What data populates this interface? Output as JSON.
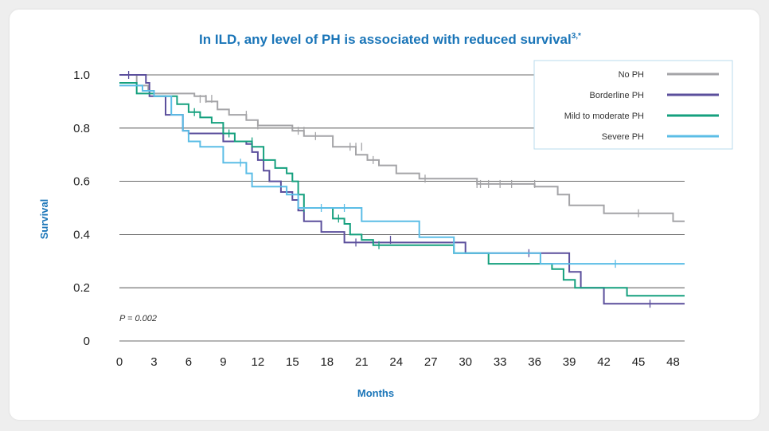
{
  "chart_data": {
    "type": "line",
    "step": true,
    "title": "In ILD, any level of PH is associated with reduced survival",
    "title_superscript": "3,*",
    "xlabel": "Months",
    "ylabel": "Survival",
    "xlim": [
      0,
      49
    ],
    "ylim": [
      0,
      1.0
    ],
    "xticks": [
      0,
      3,
      6,
      9,
      12,
      15,
      18,
      21,
      24,
      27,
      30,
      33,
      36,
      39,
      42,
      45,
      48
    ],
    "yticks": [
      {
        "value": 0,
        "label": "0"
      },
      {
        "value": 0.2,
        "label": "0.2"
      },
      {
        "value": 0.4,
        "label": "0.4"
      },
      {
        "value": 0.6,
        "label": "0.6"
      },
      {
        "value": 0.8,
        "label": "0.8"
      },
      {
        "value": 1.0,
        "label": "1.0"
      }
    ],
    "grid": true,
    "annotation": "P = 0.002",
    "legend_position": "top-right",
    "series": [
      {
        "name": "No PH",
        "color": "#a4a4a7",
        "points": [
          [
            0,
            1.0
          ],
          [
            1.5,
            0.96
          ],
          [
            2.5,
            0.94
          ],
          [
            3,
            0.93
          ],
          [
            6.5,
            0.92
          ],
          [
            7.5,
            0.9
          ],
          [
            8.5,
            0.87
          ],
          [
            9.5,
            0.85
          ],
          [
            11,
            0.83
          ],
          [
            12,
            0.81
          ],
          [
            15,
            0.79
          ],
          [
            16,
            0.77
          ],
          [
            18.5,
            0.73
          ],
          [
            20.5,
            0.7
          ],
          [
            21.5,
            0.68
          ],
          [
            22.5,
            0.66
          ],
          [
            24,
            0.63
          ],
          [
            26,
            0.61
          ],
          [
            31,
            0.59
          ],
          [
            36,
            0.58
          ],
          [
            38,
            0.55
          ],
          [
            39,
            0.51
          ],
          [
            42,
            0.48
          ],
          [
            48,
            0.45
          ],
          [
            49,
            0.45
          ]
        ],
        "censored": [
          [
            1.5,
            0.96
          ],
          [
            7,
            0.91
          ],
          [
            7.5,
            0.91
          ],
          [
            8,
            0.91
          ],
          [
            11,
            0.85
          ],
          [
            12,
            0.81
          ],
          [
            15.5,
            0.79
          ],
          [
            16,
            0.79
          ],
          [
            17,
            0.77
          ],
          [
            20,
            0.73
          ],
          [
            20.5,
            0.73
          ],
          [
            21,
            0.73
          ],
          [
            22,
            0.68
          ],
          [
            26.5,
            0.61
          ],
          [
            31,
            0.59
          ],
          [
            31.3,
            0.59
          ],
          [
            32,
            0.59
          ],
          [
            33,
            0.59
          ],
          [
            34,
            0.59
          ],
          [
            36,
            0.59
          ],
          [
            45,
            0.48
          ]
        ]
      },
      {
        "name": "Borderline PH",
        "color": "#5b4f9c",
        "points": [
          [
            0,
            1.0
          ],
          [
            2.3,
            0.97
          ],
          [
            2.6,
            0.92
          ],
          [
            4,
            0.85
          ],
          [
            5.5,
            0.79
          ],
          [
            6,
            0.78
          ],
          [
            8.5,
            0.78
          ],
          [
            9,
            0.75
          ],
          [
            11,
            0.74
          ],
          [
            11.5,
            0.71
          ],
          [
            12,
            0.68
          ],
          [
            12.5,
            0.64
          ],
          [
            13,
            0.6
          ],
          [
            14,
            0.56
          ],
          [
            15,
            0.53
          ],
          [
            15.5,
            0.49
          ],
          [
            16,
            0.45
          ],
          [
            17.5,
            0.41
          ],
          [
            19.5,
            0.37
          ],
          [
            20.5,
            0.37
          ],
          [
            30,
            0.33
          ],
          [
            39,
            0.26
          ],
          [
            40,
            0.2
          ],
          [
            42,
            0.14
          ],
          [
            49,
            0.14
          ]
        ],
        "censored": [
          [
            0.8,
            1.0
          ],
          [
            12.5,
            0.7
          ],
          [
            20.5,
            0.37
          ],
          [
            23.5,
            0.38
          ],
          [
            35.5,
            0.33
          ],
          [
            46,
            0.14
          ]
        ]
      },
      {
        "name": "Mild to moderate PH",
        "color": "#15a07e",
        "points": [
          [
            0,
            0.97
          ],
          [
            1.5,
            0.93
          ],
          [
            3,
            0.92
          ],
          [
            5,
            0.89
          ],
          [
            6,
            0.86
          ],
          [
            7,
            0.84
          ],
          [
            8,
            0.82
          ],
          [
            9,
            0.78
          ],
          [
            10,
            0.75
          ],
          [
            11.5,
            0.73
          ],
          [
            12.5,
            0.68
          ],
          [
            13.5,
            0.65
          ],
          [
            14.5,
            0.63
          ],
          [
            15,
            0.6
          ],
          [
            15.5,
            0.55
          ],
          [
            16,
            0.5
          ],
          [
            18.5,
            0.46
          ],
          [
            19.5,
            0.44
          ],
          [
            20,
            0.4
          ],
          [
            21,
            0.38
          ],
          [
            22,
            0.36
          ],
          [
            25,
            0.36
          ],
          [
            29,
            0.33
          ],
          [
            32,
            0.29
          ],
          [
            37.5,
            0.27
          ],
          [
            38.5,
            0.23
          ],
          [
            39.5,
            0.2
          ],
          [
            44,
            0.17
          ],
          [
            49,
            0.17
          ]
        ],
        "censored": [
          [
            6.5,
            0.86
          ],
          [
            9.5,
            0.78
          ],
          [
            11.5,
            0.75
          ],
          [
            16,
            0.5
          ],
          [
            19,
            0.46
          ],
          [
            22.5,
            0.36
          ],
          [
            38.5,
            0.25
          ]
        ]
      },
      {
        "name": "Severe PH",
        "color": "#5bbde6",
        "points": [
          [
            0,
            0.96
          ],
          [
            2,
            0.94
          ],
          [
            3,
            0.92
          ],
          [
            4.5,
            0.85
          ],
          [
            5.5,
            0.79
          ],
          [
            6,
            0.75
          ],
          [
            7,
            0.73
          ],
          [
            9,
            0.67
          ],
          [
            11,
            0.63
          ],
          [
            11.5,
            0.58
          ],
          [
            14.5,
            0.55
          ],
          [
            15.5,
            0.5
          ],
          [
            21,
            0.45
          ],
          [
            26,
            0.39
          ],
          [
            29,
            0.33
          ],
          [
            32,
            0.33
          ],
          [
            36.5,
            0.29
          ],
          [
            49,
            0.29
          ]
        ],
        "censored": [
          [
            10.5,
            0.67
          ],
          [
            17.5,
            0.5
          ],
          [
            19.5,
            0.5
          ],
          [
            43,
            0.29
          ]
        ]
      }
    ]
  }
}
